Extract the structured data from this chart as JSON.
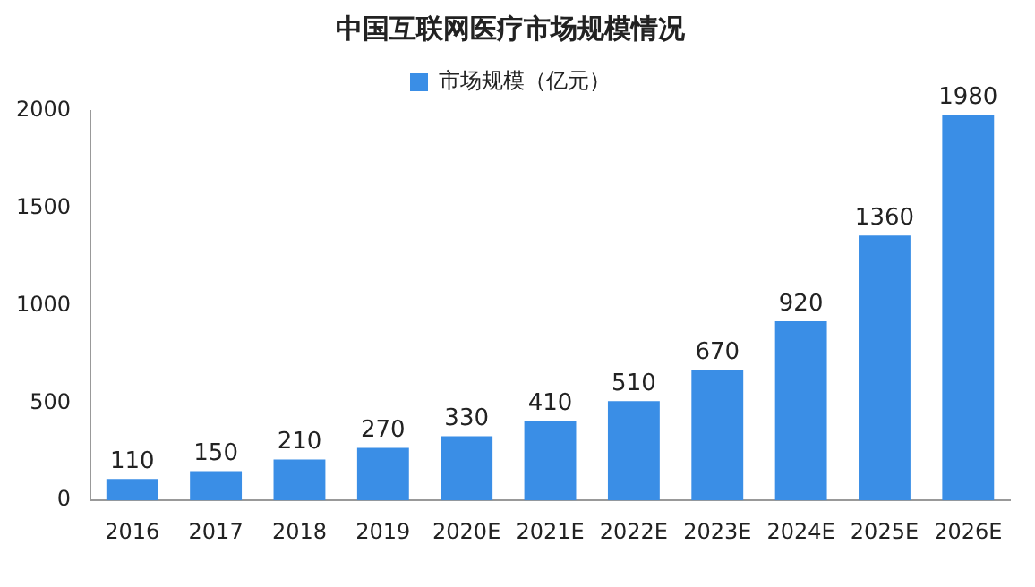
{
  "chart_data": {
    "type": "bar",
    "title": "中国互联网医疗市场规模情况",
    "categories": [
      "2016",
      "2017",
      "2018",
      "2019",
      "2020E",
      "2021E",
      "2022E",
      "2023E",
      "2024E",
      "2025E",
      "2026E"
    ],
    "series": [
      {
        "name": "市场规模（亿元）",
        "color": "#3a8ee6",
        "values": [
          110,
          150,
          210,
          270,
          330,
          410,
          510,
          670,
          920,
          1360,
          1980
        ]
      }
    ],
    "ylim": [
      0,
      2000
    ],
    "yticks": [
      0,
      500,
      1000,
      1500,
      2000
    ],
    "grid": false,
    "legend": "top",
    "data_labels": true
  }
}
